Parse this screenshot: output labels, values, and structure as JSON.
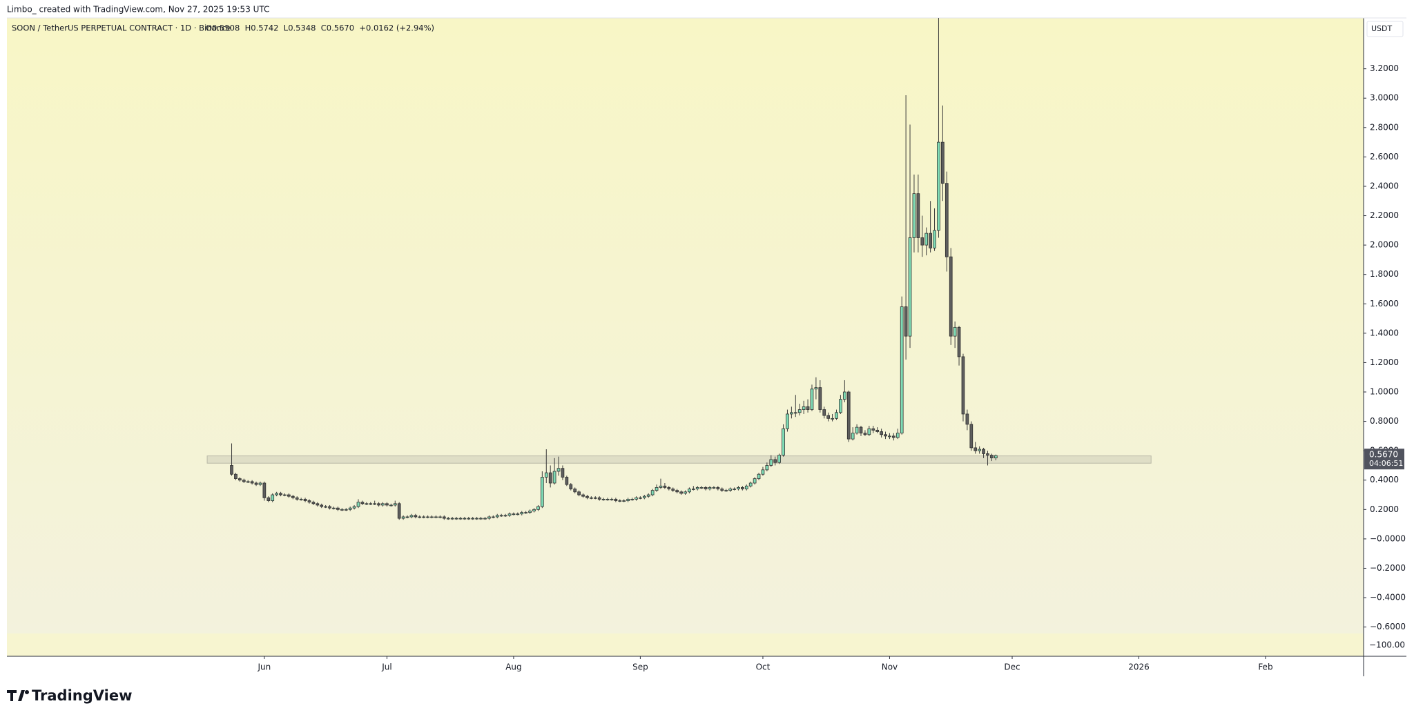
{
  "header": {
    "attribution": "Limbo_ created with TradingView.com, Nov 27, 2025 19:53 UTC"
  },
  "chart_data": {
    "type": "candlestick",
    "title": "SOON / TetherUS PERPETUAL CONTRACT · 1D · Binance",
    "ohlc_text": "O0.5508  H0.5742  L0.5348  C0.5670  +0.0162 (+2.94%)",
    "currency": "USDT",
    "last_price_label": "0.5670",
    "countdown": "04:06:51",
    "lower_pane_label": "−100.00",
    "brand": "TradingView",
    "up_color": "#7fdcb6",
    "down_color": "#5e5e5e",
    "ylim": [
      -0.644,
      3.546
    ],
    "xlim": [
      -55,
      277
    ],
    "yticks": [
      {
        "value": -0.6,
        "label": "−0.6000"
      },
      {
        "value": -0.4,
        "label": "−0.4000"
      },
      {
        "value": -0.2,
        "label": "−0.2000"
      },
      {
        "value": 0,
        "label": "−0.0000"
      },
      {
        "value": 0.2,
        "label": "0.2000"
      },
      {
        "value": 0.4,
        "label": "0.4000"
      },
      {
        "value": 0.6,
        "label": "0.6000"
      },
      {
        "value": 0.8,
        "label": "0.8000"
      },
      {
        "value": 1,
        "label": "1.0000"
      },
      {
        "value": 1.2,
        "label": "1.2000"
      },
      {
        "value": 1.4,
        "label": "1.4000"
      },
      {
        "value": 1.6,
        "label": "1.6000"
      },
      {
        "value": 1.8,
        "label": "1.8000"
      },
      {
        "value": 2,
        "label": "2.0000"
      },
      {
        "value": 2.2,
        "label": "2.2000"
      },
      {
        "value": 2.4,
        "label": "2.4000"
      },
      {
        "value": 2.6,
        "label": "2.6000"
      },
      {
        "value": 2.8,
        "label": "2.8000"
      },
      {
        "value": 3,
        "label": "3.0000"
      },
      {
        "value": 3.2,
        "label": "3.2000"
      }
    ],
    "xticks": [
      {
        "value": 8,
        "label": "Jun"
      },
      {
        "value": 38,
        "label": "Jul"
      },
      {
        "value": 69,
        "label": "Aug"
      },
      {
        "value": 100,
        "label": "Sep"
      },
      {
        "value": 130,
        "label": "Oct"
      },
      {
        "value": 161,
        "label": "Nov"
      },
      {
        "value": 191,
        "label": "Dec"
      },
      {
        "value": 222,
        "label": "2026"
      },
      {
        "value": 253,
        "label": "Feb"
      }
    ],
    "zone": {
      "ylim": [
        0.515,
        0.565
      ],
      "xlim": [
        -6,
        225
      ]
    },
    "candles": [
      [
        0.5,
        0.65,
        0.43,
        0.44
      ],
      [
        0.44,
        0.45,
        0.4,
        0.41
      ],
      [
        0.41,
        0.42,
        0.39,
        0.4
      ],
      [
        0.4,
        0.41,
        0.38,
        0.39
      ],
      [
        0.39,
        0.4,
        0.38,
        0.39
      ],
      [
        0.39,
        0.4,
        0.37,
        0.38
      ],
      [
        0.38,
        0.39,
        0.36,
        0.37
      ],
      [
        0.37,
        0.39,
        0.36,
        0.38
      ],
      [
        0.38,
        0.39,
        0.26,
        0.28
      ],
      [
        0.28,
        0.29,
        0.25,
        0.26
      ],
      [
        0.26,
        0.31,
        0.25,
        0.3
      ],
      [
        0.3,
        0.32,
        0.29,
        0.31
      ],
      [
        0.31,
        0.32,
        0.29,
        0.3
      ],
      [
        0.3,
        0.31,
        0.29,
        0.3
      ],
      [
        0.3,
        0.31,
        0.28,
        0.29
      ],
      [
        0.29,
        0.3,
        0.27,
        0.28
      ],
      [
        0.28,
        0.29,
        0.26,
        0.27
      ],
      [
        0.27,
        0.28,
        0.26,
        0.27
      ],
      [
        0.27,
        0.28,
        0.25,
        0.26
      ],
      [
        0.26,
        0.27,
        0.24,
        0.25
      ],
      [
        0.25,
        0.26,
        0.23,
        0.24
      ],
      [
        0.24,
        0.25,
        0.22,
        0.23
      ],
      [
        0.23,
        0.24,
        0.21,
        0.22
      ],
      [
        0.22,
        0.23,
        0.21,
        0.22
      ],
      [
        0.22,
        0.23,
        0.2,
        0.21
      ],
      [
        0.21,
        0.22,
        0.2,
        0.21
      ],
      [
        0.21,
        0.22,
        0.19,
        0.2
      ],
      [
        0.2,
        0.21,
        0.19,
        0.2
      ],
      [
        0.2,
        0.21,
        0.19,
        0.2
      ],
      [
        0.2,
        0.22,
        0.19,
        0.21
      ],
      [
        0.21,
        0.23,
        0.2,
        0.22
      ],
      [
        0.22,
        0.27,
        0.21,
        0.25
      ],
      [
        0.25,
        0.26,
        0.23,
        0.24
      ],
      [
        0.24,
        0.25,
        0.23,
        0.24
      ],
      [
        0.24,
        0.25,
        0.23,
        0.24
      ],
      [
        0.24,
        0.26,
        0.23,
        0.24
      ],
      [
        0.24,
        0.25,
        0.22,
        0.23
      ],
      [
        0.23,
        0.25,
        0.22,
        0.24
      ],
      [
        0.24,
        0.25,
        0.22,
        0.23
      ],
      [
        0.23,
        0.24,
        0.22,
        0.23
      ],
      [
        0.23,
        0.26,
        0.22,
        0.24
      ],
      [
        0.24,
        0.25,
        0.13,
        0.14
      ],
      [
        0.14,
        0.16,
        0.13,
        0.15
      ],
      [
        0.15,
        0.16,
        0.14,
        0.15
      ],
      [
        0.15,
        0.17,
        0.14,
        0.16
      ],
      [
        0.16,
        0.17,
        0.14,
        0.15
      ],
      [
        0.15,
        0.16,
        0.14,
        0.15
      ],
      [
        0.15,
        0.16,
        0.14,
        0.15
      ],
      [
        0.15,
        0.16,
        0.14,
        0.15
      ],
      [
        0.15,
        0.16,
        0.14,
        0.15
      ],
      [
        0.15,
        0.16,
        0.14,
        0.15
      ],
      [
        0.15,
        0.16,
        0.14,
        0.15
      ],
      [
        0.15,
        0.16,
        0.13,
        0.14
      ],
      [
        0.14,
        0.15,
        0.13,
        0.14
      ],
      [
        0.14,
        0.15,
        0.13,
        0.14
      ],
      [
        0.14,
        0.15,
        0.13,
        0.14
      ],
      [
        0.14,
        0.15,
        0.13,
        0.14
      ],
      [
        0.14,
        0.15,
        0.13,
        0.14
      ],
      [
        0.14,
        0.15,
        0.13,
        0.14
      ],
      [
        0.14,
        0.15,
        0.13,
        0.14
      ],
      [
        0.14,
        0.15,
        0.13,
        0.14
      ],
      [
        0.14,
        0.15,
        0.13,
        0.14
      ],
      [
        0.14,
        0.15,
        0.13,
        0.14
      ],
      [
        0.14,
        0.16,
        0.13,
        0.15
      ],
      [
        0.15,
        0.16,
        0.14,
        0.15
      ],
      [
        0.15,
        0.17,
        0.14,
        0.16
      ],
      [
        0.16,
        0.17,
        0.15,
        0.16
      ],
      [
        0.16,
        0.17,
        0.15,
        0.16
      ],
      [
        0.16,
        0.18,
        0.15,
        0.17
      ],
      [
        0.17,
        0.18,
        0.16,
        0.17
      ],
      [
        0.17,
        0.18,
        0.16,
        0.17
      ],
      [
        0.17,
        0.19,
        0.16,
        0.18
      ],
      [
        0.18,
        0.19,
        0.17,
        0.18
      ],
      [
        0.18,
        0.2,
        0.17,
        0.19
      ],
      [
        0.19,
        0.21,
        0.18,
        0.2
      ],
      [
        0.2,
        0.23,
        0.19,
        0.22
      ],
      [
        0.22,
        0.46,
        0.21,
        0.42
      ],
      [
        0.42,
        0.61,
        0.38,
        0.45
      ],
      [
        0.45,
        0.5,
        0.35,
        0.38
      ],
      [
        0.38,
        0.55,
        0.37,
        0.46
      ],
      [
        0.46,
        0.56,
        0.43,
        0.48
      ],
      [
        0.48,
        0.5,
        0.4,
        0.42
      ],
      [
        0.42,
        0.43,
        0.36,
        0.37
      ],
      [
        0.37,
        0.38,
        0.33,
        0.34
      ],
      [
        0.34,
        0.35,
        0.31,
        0.32
      ],
      [
        0.32,
        0.33,
        0.29,
        0.3
      ],
      [
        0.3,
        0.31,
        0.28,
        0.29
      ],
      [
        0.29,
        0.3,
        0.27,
        0.28
      ],
      [
        0.28,
        0.29,
        0.27,
        0.28
      ],
      [
        0.28,
        0.29,
        0.27,
        0.28
      ],
      [
        0.28,
        0.29,
        0.26,
        0.27
      ],
      [
        0.27,
        0.28,
        0.26,
        0.27
      ],
      [
        0.27,
        0.28,
        0.26,
        0.27
      ],
      [
        0.27,
        0.28,
        0.26,
        0.27
      ],
      [
        0.27,
        0.28,
        0.25,
        0.26
      ],
      [
        0.26,
        0.27,
        0.25,
        0.26
      ],
      [
        0.26,
        0.27,
        0.25,
        0.26
      ],
      [
        0.26,
        0.28,
        0.25,
        0.27
      ],
      [
        0.27,
        0.28,
        0.26,
        0.27
      ],
      [
        0.27,
        0.29,
        0.26,
        0.28
      ],
      [
        0.28,
        0.29,
        0.27,
        0.28
      ],
      [
        0.28,
        0.3,
        0.27,
        0.29
      ],
      [
        0.29,
        0.31,
        0.28,
        0.3
      ],
      [
        0.3,
        0.34,
        0.29,
        0.33
      ],
      [
        0.33,
        0.37,
        0.32,
        0.35
      ],
      [
        0.35,
        0.41,
        0.34,
        0.36
      ],
      [
        0.36,
        0.38,
        0.34,
        0.35
      ],
      [
        0.35,
        0.36,
        0.33,
        0.34
      ],
      [
        0.34,
        0.35,
        0.32,
        0.33
      ],
      [
        0.33,
        0.34,
        0.31,
        0.32
      ],
      [
        0.32,
        0.33,
        0.3,
        0.31
      ],
      [
        0.31,
        0.33,
        0.3,
        0.32
      ],
      [
        0.32,
        0.35,
        0.31,
        0.34
      ],
      [
        0.34,
        0.36,
        0.33,
        0.34
      ],
      [
        0.34,
        0.36,
        0.33,
        0.35
      ],
      [
        0.35,
        0.36,
        0.34,
        0.35
      ],
      [
        0.35,
        0.36,
        0.33,
        0.34
      ],
      [
        0.34,
        0.36,
        0.33,
        0.35
      ],
      [
        0.35,
        0.36,
        0.34,
        0.35
      ],
      [
        0.35,
        0.36,
        0.33,
        0.34
      ],
      [
        0.34,
        0.35,
        0.32,
        0.33
      ],
      [
        0.33,
        0.34,
        0.32,
        0.33
      ],
      [
        0.33,
        0.35,
        0.32,
        0.34
      ],
      [
        0.34,
        0.35,
        0.33,
        0.34
      ],
      [
        0.34,
        0.36,
        0.33,
        0.35
      ],
      [
        0.35,
        0.36,
        0.33,
        0.34
      ],
      [
        0.34,
        0.37,
        0.33,
        0.36
      ],
      [
        0.36,
        0.39,
        0.35,
        0.38
      ],
      [
        0.38,
        0.42,
        0.37,
        0.41
      ],
      [
        0.41,
        0.45,
        0.4,
        0.44
      ],
      [
        0.44,
        0.49,
        0.43,
        0.47
      ],
      [
        0.47,
        0.52,
        0.46,
        0.5
      ],
      [
        0.5,
        0.57,
        0.49,
        0.54
      ],
      [
        0.54,
        0.56,
        0.5,
        0.52
      ],
      [
        0.52,
        0.58,
        0.51,
        0.57
      ],
      [
        0.57,
        0.78,
        0.56,
        0.75
      ],
      [
        0.75,
        0.88,
        0.73,
        0.85
      ],
      [
        0.85,
        0.9,
        0.82,
        0.86
      ],
      [
        0.86,
        0.98,
        0.83,
        0.86
      ],
      [
        0.86,
        0.92,
        0.84,
        0.88
      ],
      [
        0.88,
        0.94,
        0.85,
        0.9
      ],
      [
        0.9,
        0.95,
        0.86,
        0.88
      ],
      [
        0.88,
        1.05,
        0.87,
        1.02
      ],
      [
        1.02,
        1.1,
        0.95,
        1.03
      ],
      [
        1.03,
        1.08,
        0.86,
        0.88
      ],
      [
        0.88,
        0.9,
        0.82,
        0.84
      ],
      [
        0.84,
        0.86,
        0.8,
        0.82
      ],
      [
        0.82,
        0.85,
        0.8,
        0.82
      ],
      [
        0.82,
        0.88,
        0.81,
        0.86
      ],
      [
        0.86,
        0.98,
        0.85,
        0.95
      ],
      [
        0.95,
        1.08,
        0.93,
        1.0
      ],
      [
        1.0,
        1.01,
        0.66,
        0.68
      ],
      [
        0.68,
        0.76,
        0.67,
        0.72
      ],
      [
        0.72,
        0.78,
        0.71,
        0.76
      ],
      [
        0.76,
        0.77,
        0.7,
        0.72
      ],
      [
        0.72,
        0.74,
        0.7,
        0.71
      ],
      [
        0.71,
        0.77,
        0.7,
        0.75
      ],
      [
        0.75,
        0.77,
        0.72,
        0.74
      ],
      [
        0.74,
        0.76,
        0.72,
        0.73
      ],
      [
        0.73,
        0.75,
        0.69,
        0.71
      ],
      [
        0.71,
        0.73,
        0.68,
        0.7
      ],
      [
        0.7,
        0.72,
        0.68,
        0.7
      ],
      [
        0.7,
        0.72,
        0.67,
        0.69
      ],
      [
        0.69,
        0.75,
        0.68,
        0.72
      ],
      [
        0.72,
        1.65,
        0.71,
        1.58
      ],
      [
        1.58,
        3.02,
        1.22,
        1.38
      ],
      [
        1.38,
        2.82,
        1.3,
        2.05
      ],
      [
        2.05,
        2.48,
        1.95,
        2.35
      ],
      [
        2.35,
        2.48,
        1.95,
        2.05
      ],
      [
        2.05,
        2.2,
        1.92,
        2.0
      ],
      [
        2.0,
        2.12,
        1.93,
        2.08
      ],
      [
        2.08,
        2.3,
        1.95,
        1.98
      ],
      [
        1.98,
        2.25,
        1.96,
        2.1
      ],
      [
        2.1,
        3.6,
        2.05,
        2.7
      ],
      [
        2.7,
        2.95,
        2.3,
        2.42
      ],
      [
        2.42,
        2.5,
        1.82,
        1.92
      ],
      [
        1.92,
        1.98,
        1.32,
        1.38
      ],
      [
        1.38,
        1.48,
        1.3,
        1.44
      ],
      [
        1.44,
        1.45,
        1.18,
        1.24
      ],
      [
        1.24,
        1.26,
        0.8,
        0.85
      ],
      [
        0.85,
        0.88,
        0.74,
        0.78
      ],
      [
        0.78,
        0.8,
        0.6,
        0.62
      ],
      [
        0.62,
        0.66,
        0.58,
        0.6
      ],
      [
        0.6,
        0.63,
        0.58,
        0.61
      ],
      [
        0.61,
        0.62,
        0.55,
        0.58
      ],
      [
        0.58,
        0.6,
        0.5,
        0.57
      ],
      [
        0.57,
        0.58,
        0.53,
        0.5508
      ],
      [
        0.5508,
        0.5742,
        0.5348,
        0.567
      ]
    ]
  }
}
